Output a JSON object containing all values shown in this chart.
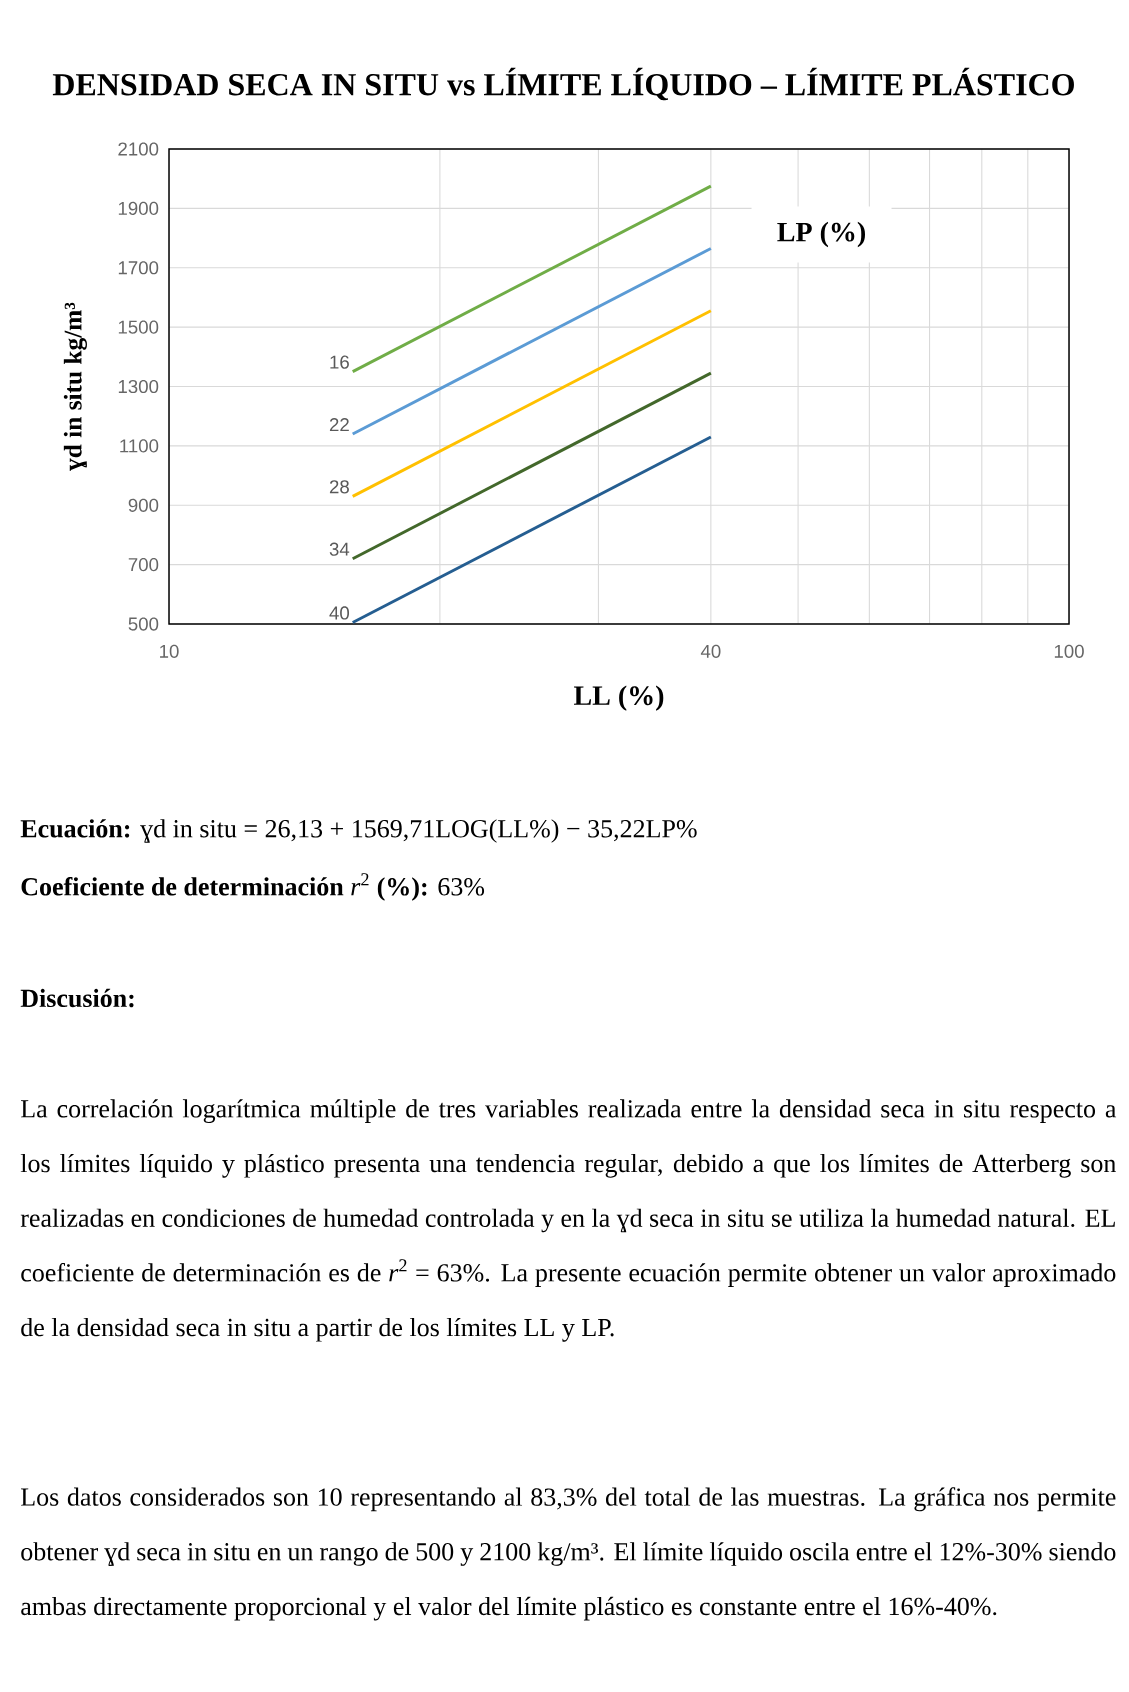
{
  "chart_data": {
    "type": "line",
    "title": "**DENSIDAD SECA IN SITU vs LÍMITE LÍQUIDO – LÍMITE PLÁSTICO**",
    "xlabel": "LL (%)",
    "ylabel": "ɣd in situ kg/m³",
    "legend_title": "LP (%)",
    "xlim": [
      10,
      100
    ],
    "ylim": [
      500,
      2100
    ],
    "xticks": [
      10,
      {
        "value": 20,
        "label": null
      },
      {
        "value": 30,
        "label": null
      },
      40,
      {
        "value": 50,
        "label": null
      },
      {
        "value": 60,
        "label": null
      },
      {
        "value": 70,
        "label": null
      },
      {
        "value": 80,
        "label": null
      },
      {
        "value": 90,
        "label": null
      },
      100
    ],
    "yticks": [
      500,
      700,
      900,
      1100,
      1300,
      1500,
      1700,
      1900,
      2100
    ],
    "log": "x",
    "grid": true,
    "x": [
      16,
      40
    ],
    "series": [
      {
        "name": "16",
        "color": "#70ad47",
        "values": [
          1350,
          1975
        ]
      },
      {
        "name": "22",
        "color": "#5b9bd5",
        "values": [
          1140,
          1765
        ]
      },
      {
        "name": "28",
        "color": "#ffc000",
        "values": [
          930,
          1555
        ]
      },
      {
        "name": "34",
        "color": "#43682b",
        "values": [
          720,
          1345
        ]
      },
      {
        "name": "40",
        "color": "#255e91",
        "values": [
          505,
          1130
        ]
      }
    ],
    "annotations": [
      "**Ecuación:** ɣd in situ = 26,13 + 1569,71LOG(LL%) − 35,22LP%",
      "**Coeficiente de determinación** *r*$^{2}$ **(%):** 63%",
      "**Discusión:**",
      "La correlación logarítmica múltiple de tres variables realizada entre la densidad seca in situ respecto a los límites líquido y plástico presenta una tendencia regular, debido a que los límites de Atterberg son realizadas en condiciones de humedad controlada y en la ɣd seca in situ se utiliza la humedad natural. EL coeficiente de determinación es de *r*$^{2}$ = 63%. La presente ecuación permite obtener un valor aproximado de la densidad seca in situ a partir de los límites LL y LP.",
      "Los datos considerados son 10 representando al 83,3% del total de las muestras. La gráfica nos permite obtener ɣd seca in situ en un rango de 500 y 2100 kg/m³. El límite líquido oscila entre el 12%-30% siendo ambas directamente proporcional y el valor del límite plástico es constante entre el 16%-40%."
    ]
  }
}
